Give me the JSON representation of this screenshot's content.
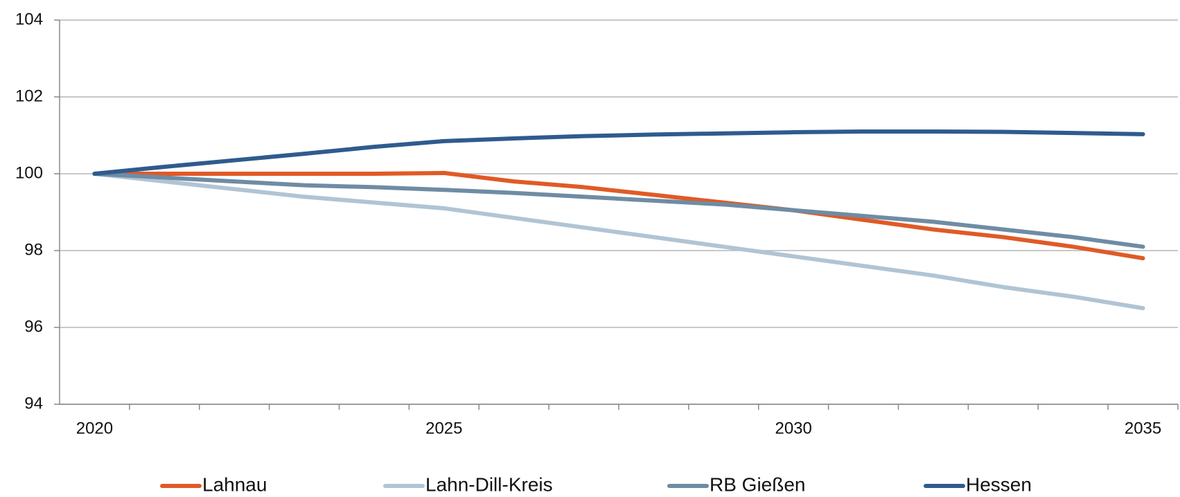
{
  "chart_data": {
    "type": "line",
    "x": [
      2020,
      2021,
      2022,
      2023,
      2024,
      2025,
      2026,
      2027,
      2028,
      2029,
      2030,
      2031,
      2032,
      2033,
      2034,
      2035
    ],
    "xlim": [
      2019.5,
      2035.5
    ],
    "xticks": [
      2020,
      2025,
      2030,
      2035
    ],
    "ylim": [
      94,
      104
    ],
    "yticks": [
      94,
      96,
      98,
      100,
      102,
      104
    ],
    "grid": true,
    "legend": "bottom",
    "series": [
      {
        "name": "Lahnau",
        "color": "#e05a26",
        "values": [
          100,
          100,
          100,
          100,
          100,
          100.02,
          99.8,
          99.65,
          99.45,
          99.25,
          99.05,
          98.8,
          98.55,
          98.35,
          98.1,
          97.8
        ]
      },
      {
        "name": "Lahn-Dill-Kreis",
        "color": "#b0c4d4",
        "values": [
          100,
          99.8,
          99.6,
          99.4,
          99.25,
          99.1,
          98.85,
          98.6,
          98.35,
          98.1,
          97.85,
          97.6,
          97.35,
          97.05,
          96.8,
          96.5
        ]
      },
      {
        "name": "RB Gießen",
        "color": "#6e8ca4",
        "values": [
          100,
          99.9,
          99.8,
          99.7,
          99.65,
          99.58,
          99.5,
          99.4,
          99.3,
          99.2,
          99.05,
          98.9,
          98.75,
          98.55,
          98.35,
          98.1
        ]
      },
      {
        "name": "Hessen",
        "color": "#2f5b8e",
        "values": [
          100,
          100.18,
          100.35,
          100.52,
          100.7,
          100.85,
          100.92,
          100.98,
          101.02,
          101.05,
          101.08,
          101.1,
          101.1,
          101.09,
          101.06,
          101.03
        ]
      }
    ]
  }
}
